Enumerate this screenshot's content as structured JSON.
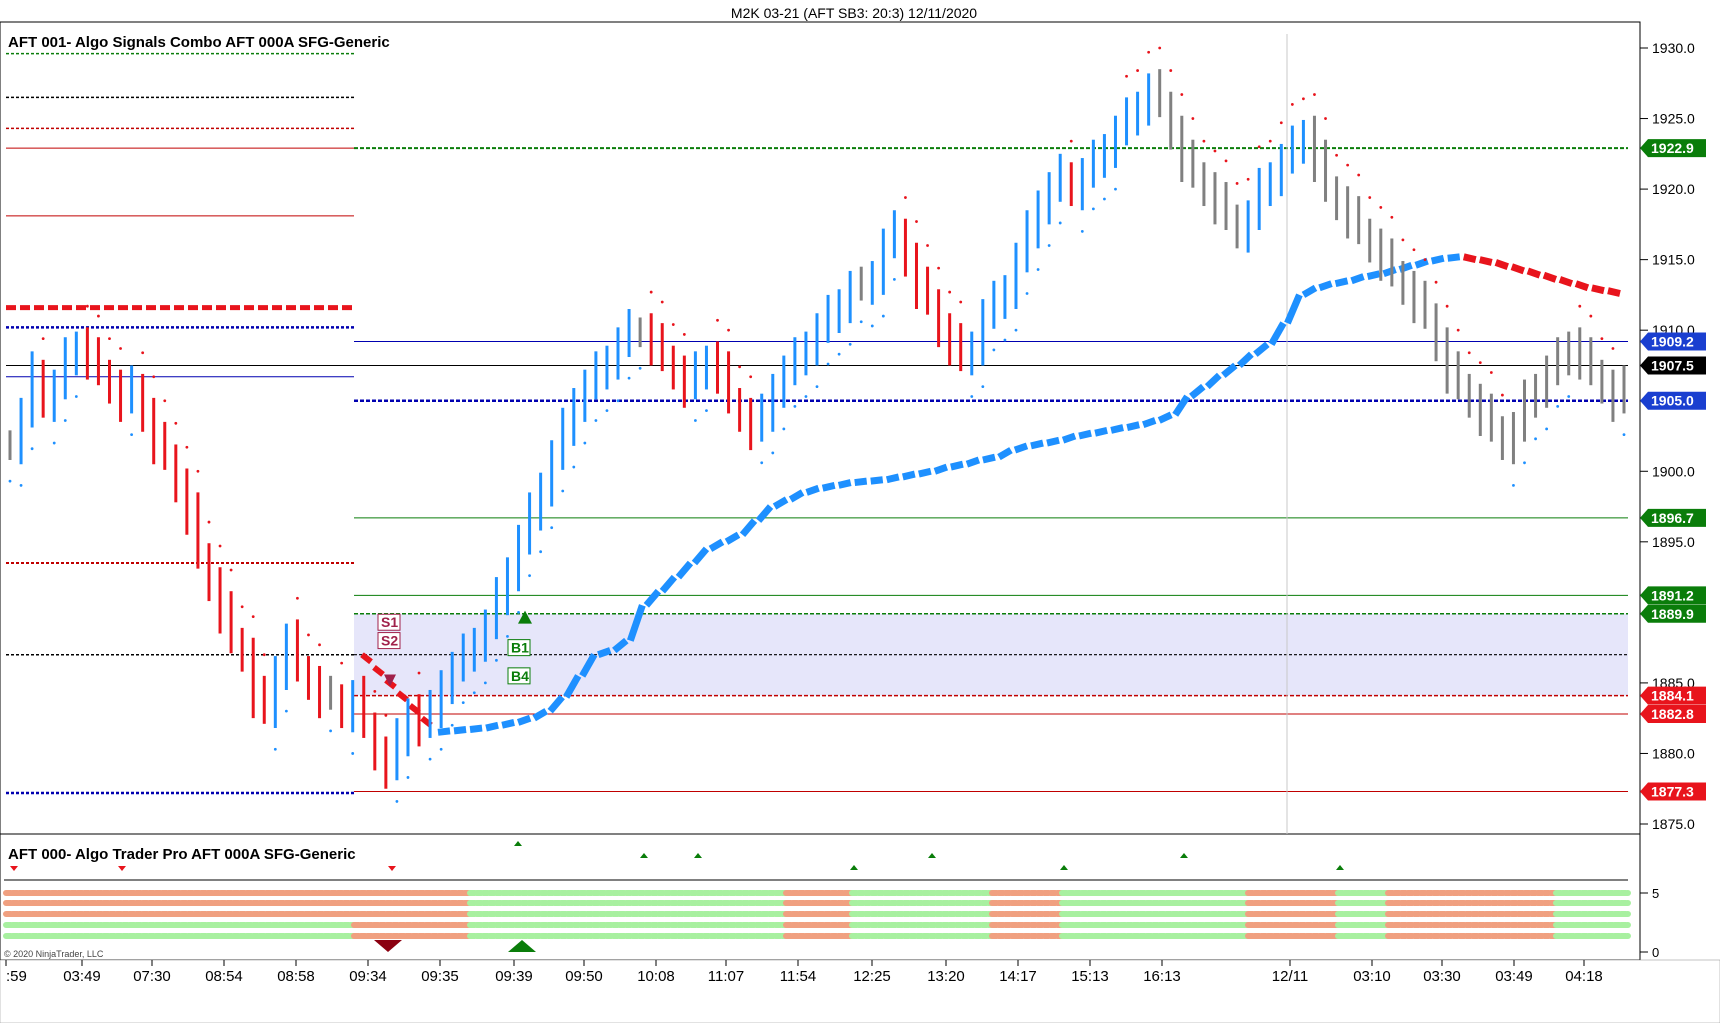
{
  "window_title": "M2K 03-21 (AFT SB3: 20:3)  12/11/2020",
  "indicator_top": "AFT 001- Algo Signals Combo AFT 000A SFG-Generic",
  "indicator_bottom": "AFT 000- Algo Trader Pro AFT 000A SFG-Generic",
  "copyright": "© 2020 NinjaTrader, LLC",
  "colors": {
    "up_bar": "#1e90ff",
    "down_bar": "#e8141c",
    "neutral_bar": "#808080",
    "zone_fill": "#e6e6fa",
    "green_line": "#0a7d0a",
    "blue_line": "#0000b0",
    "red_line": "#c00000",
    "salmon_dot": "#f0a080",
    "lightgreen_dot": "#a8f0a0"
  },
  "chart_data": {
    "type": "bar",
    "subtype": "ohlc-price-chart",
    "ylim": [
      1875,
      1930
    ],
    "y_ticks": [
      "1930.0",
      "1925.0",
      "1920.0",
      "1915.0",
      "1910.0",
      "1900.0",
      "1895.0",
      "1885.0",
      "1880.0",
      "1875.0"
    ],
    "x_ticks": [
      ":59",
      "03:49",
      "07:30",
      "08:54",
      "08:58",
      "09:34",
      "09:35",
      "09:39",
      "09:50",
      "10:08",
      "11:07",
      "11:54",
      "12:25",
      "13:20",
      "14:17",
      "15:13",
      "16:13",
      "12/11",
      "03:10",
      "03:30",
      "03:49",
      "04:18"
    ],
    "price_labels": [
      {
        "value": 1922.9,
        "text": "1922.9",
        "color": "#0a7d0a"
      },
      {
        "value": 1909.2,
        "text": "1909.2",
        "color": "#1a3fd0"
      },
      {
        "value": 1907.5,
        "text": "1907.5",
        "color": "#000000"
      },
      {
        "value": 1905.0,
        "text": "1905.0",
        "color": "#1a3fd0"
      },
      {
        "value": 1896.7,
        "text": "1896.7",
        "color": "#0a7d0a"
      },
      {
        "value": 1891.2,
        "text": "1891.2",
        "color": "#0a7d0a"
      },
      {
        "value": 1889.9,
        "text": "1889.9",
        "color": "#0a7d0a"
      },
      {
        "value": 1884.1,
        "text": "1884.1",
        "color": "#e8141c"
      },
      {
        "value": 1882.8,
        "text": "1882.8",
        "color": "#e8141c"
      },
      {
        "value": 1877.3,
        "text": "1877.3",
        "color": "#e8141c"
      }
    ],
    "zone": [
      1884.1,
      1889.9
    ],
    "signals": [
      {
        "text": "S1",
        "type": "sell"
      },
      {
        "text": "S2",
        "type": "sell"
      },
      {
        "text": "B1",
        "type": "buy"
      },
      {
        "text": "B4",
        "type": "buy"
      }
    ],
    "closes": [
      1902,
      1904,
      1907,
      1905,
      1906,
      1908,
      1909,
      1908,
      1907,
      1906,
      1905,
      1906,
      1904,
      1902,
      1901,
      1899,
      1897,
      1894,
      1892,
      1890,
      1888,
      1887,
      1884,
      1883,
      1886,
      1888,
      1886,
      1885,
      1884,
      1884,
      1883,
      1884,
      1882,
      1880,
      1879,
      1881,
      1883,
      1882,
      1883,
      1885,
      1886,
      1887,
      1888,
      1889,
      1891,
      1893,
      1895,
      1897,
      1899,
      1901,
      1903,
      1905,
      1906,
      1907,
      1908,
      1909,
      1910,
      1910,
      1909,
      1908,
      1907,
      1906,
      1907,
      1908,
      1907,
      1905,
      1904,
      1903,
      1904,
      1906,
      1907,
      1908,
      1909,
      1910,
      1911,
      1912,
      1913,
      1913,
      1914,
      1916,
      1917,
      1915,
      1913,
      1912,
      1910,
      1909,
      1908,
      1909,
      1911,
      1912,
      1913,
      1915,
      1917,
      1919,
      1920,
      1921,
      1920,
      1921,
      1922,
      1923,
      1924,
      1925,
      1926,
      1927,
      1926,
      1924,
      1922,
      1921,
      1920,
      1919,
      1918,
      1917,
      1918,
      1920,
      1921,
      1922,
      1923,
      1924,
      1922,
      1920,
      1919,
      1918,
      1917,
      1916,
      1915,
      1914,
      1913,
      1912,
      1911,
      1909,
      1907,
      1906,
      1905,
      1904,
      1903,
      1902,
      1903,
      1905,
      1906,
      1907,
      1908,
      1909,
      1908,
      1907,
      1906,
      1905,
      1906
    ],
    "trend_line": [
      1881.5,
      1881.6,
      1881.7,
      1881.8,
      1882.0,
      1882.2,
      1882.5,
      1883.0,
      1884.0,
      1885.5,
      1887.0,
      1887.3,
      1888.0,
      1890.5,
      1891.5,
      1892.5,
      1893.5,
      1894.5,
      1895.0,
      1895.5,
      1896.5,
      1897.5,
      1898.0,
      1898.5,
      1898.8,
      1899.0,
      1899.2,
      1899.3,
      1899.4,
      1899.6,
      1899.8,
      1900.0,
      1900.3,
      1900.5,
      1900.8,
      1901.0,
      1901.5,
      1901.8,
      1902.0,
      1902.2,
      1902.5,
      1902.7,
      1902.9,
      1903.1,
      1903.3,
      1903.6,
      1904.0,
      1905.3,
      1906.0,
      1906.8,
      1907.5,
      1908.3,
      1909.0,
      1910.5,
      1912.5,
      1913.0,
      1913.3,
      1913.5,
      1913.8,
      1914.0,
      1914.3,
      1914.6,
      1914.9,
      1915.1,
      1915.2,
      1915.0,
      1914.8,
      1914.5,
      1914.2,
      1913.9,
      1913.6,
      1913.3,
      1913.0,
      1912.8,
      1912.6
    ]
  }
}
